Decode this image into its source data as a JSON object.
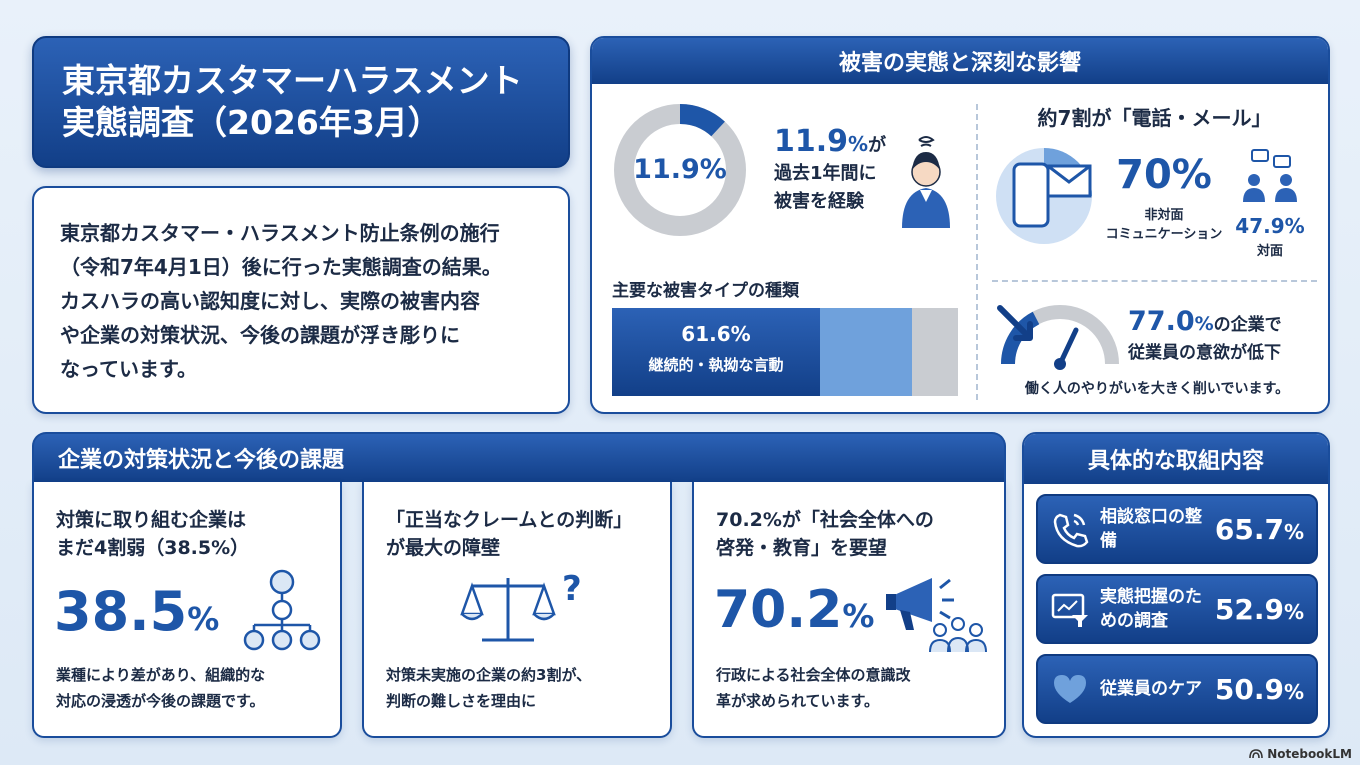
{
  "title": {
    "line1": "東京都カスタマーハラスメント",
    "line2": "実態調査（2026年3月）"
  },
  "intro": {
    "lines": [
      "東京都カスタマー・ハラスメント防止条例の施行",
      "（令和7年4月1日）後に行った実態調査の結果。",
      "カスハラの高い認知度に対し、実際の被害内容",
      "や企業の対策状況、今後の課題が浮き彫りに",
      "なっています。"
    ]
  },
  "impact": {
    "header": "被害の実態と深刻な影響",
    "victim": {
      "donut_label": "11.9%",
      "donut_fraction": 0.119,
      "pct": "11.9",
      "pct_unit": "%",
      "pct_suffix": "が",
      "line2": "過去1年間に",
      "line3": "被害を経験"
    },
    "types": {
      "heading": "主要な被害タイプの種類",
      "main_value": "61.6%",
      "main_label": "継続的・執拗な言動",
      "bar_fraction": 0.616
    },
    "channels": {
      "heading": "約7割が「電話・メール」",
      "nonface_value": "70%",
      "nonface_label1": "非対面",
      "nonface_label2": "コミュニケーション",
      "face_value": "47.9%",
      "face_label": "対面"
    },
    "motivation": {
      "pct": "77.0",
      "pct_unit": "%",
      "suffix": "の企業で",
      "line2": "従業員の意欲が低下",
      "note": "働く人のやりがいを大きく削いでいます。"
    }
  },
  "measures": {
    "header": "企業の対策状況と今後の課題",
    "cards": [
      {
        "title1": "対策に取り組む企業は",
        "title2": "まだ4割弱（38.5%）",
        "big": "38.5",
        "big_unit": "%",
        "body1": "業種により差があり、組織的な",
        "body2": "対応の浸透が今後の課題です。"
      },
      {
        "title1": "「正当なクレームとの判断」",
        "title2": "が最大の障壁",
        "body1": "対策未実施の企業の約3割が、",
        "body2": "判断の難しさを理由に"
      },
      {
        "title1": "70.2%が「社会全体への",
        "title2": "啓発・教育」を要望",
        "big": "70.2",
        "big_unit": "%",
        "body1": "行政による社会全体の意識改",
        "body2": "革が求められています。"
      }
    ]
  },
  "actions": {
    "header": "具体的な取組内容",
    "items": [
      {
        "label": "相談窓口の整備",
        "value": "65.7",
        "unit": "%",
        "icon": "phone-icon"
      },
      {
        "label": "実態把握のための調査",
        "value": "52.9",
        "unit": "%",
        "icon": "survey-icon"
      },
      {
        "label": "従業員のケア",
        "value": "50.9",
        "unit": "%",
        "icon": "heart-icon"
      }
    ]
  },
  "brand": "NotebookLM",
  "colors": {
    "navy": "#123f88",
    "blue": "#1e56a8",
    "light_blue": "#6fa1dc",
    "grey": "#c9ccd1"
  }
}
